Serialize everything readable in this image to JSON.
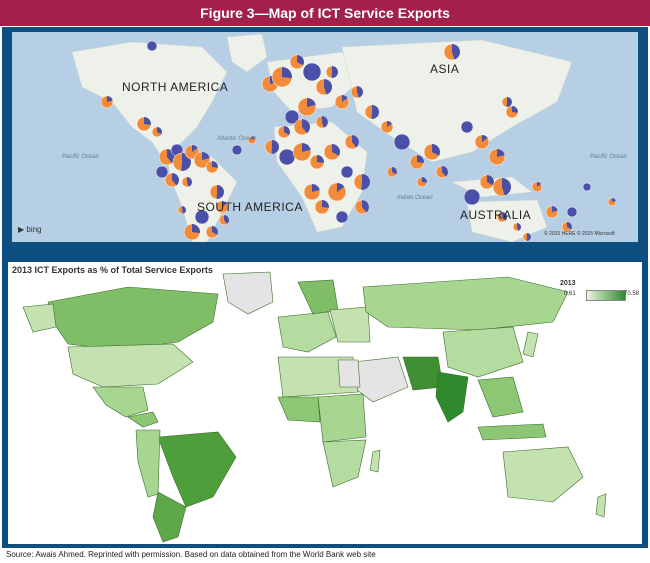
{
  "figure_title": "Figure 3—Map of ICT Service Exports",
  "map1": {
    "continents": {
      "north_america": "NORTH AMERICA",
      "south_america": "SOUTH AMERICA",
      "asia": "ASIA",
      "australia": "AUSTRALIA"
    },
    "ocean_labels": {
      "pacific_west": "Pacific Ocean",
      "atlantic": "Atlantic Ocean",
      "indian": "Indian Ocean",
      "pacific_east": "Pacific Ocean"
    },
    "provider": "bing",
    "attribution": "© 2015 HERE   © 2015 Microsoft",
    "colors": {
      "ocean": "#b6cfe5",
      "land": "#eef0ea",
      "orange": "#f28c3a",
      "blue": "#4a4fa8"
    }
  },
  "map2": {
    "title": "2013 ICT Exports as % of Total Service Exports",
    "legend": {
      "year": "2013",
      "min": "0.61",
      "max": "70.58"
    },
    "colors": {
      "low": "#eaf5e0",
      "high": "#2f8a2e",
      "no_data": "#e4e4e4"
    }
  },
  "source": "Source:  Awais Ahmed. Reprinted with permission. Based on data obtained from the World Bank web site"
}
